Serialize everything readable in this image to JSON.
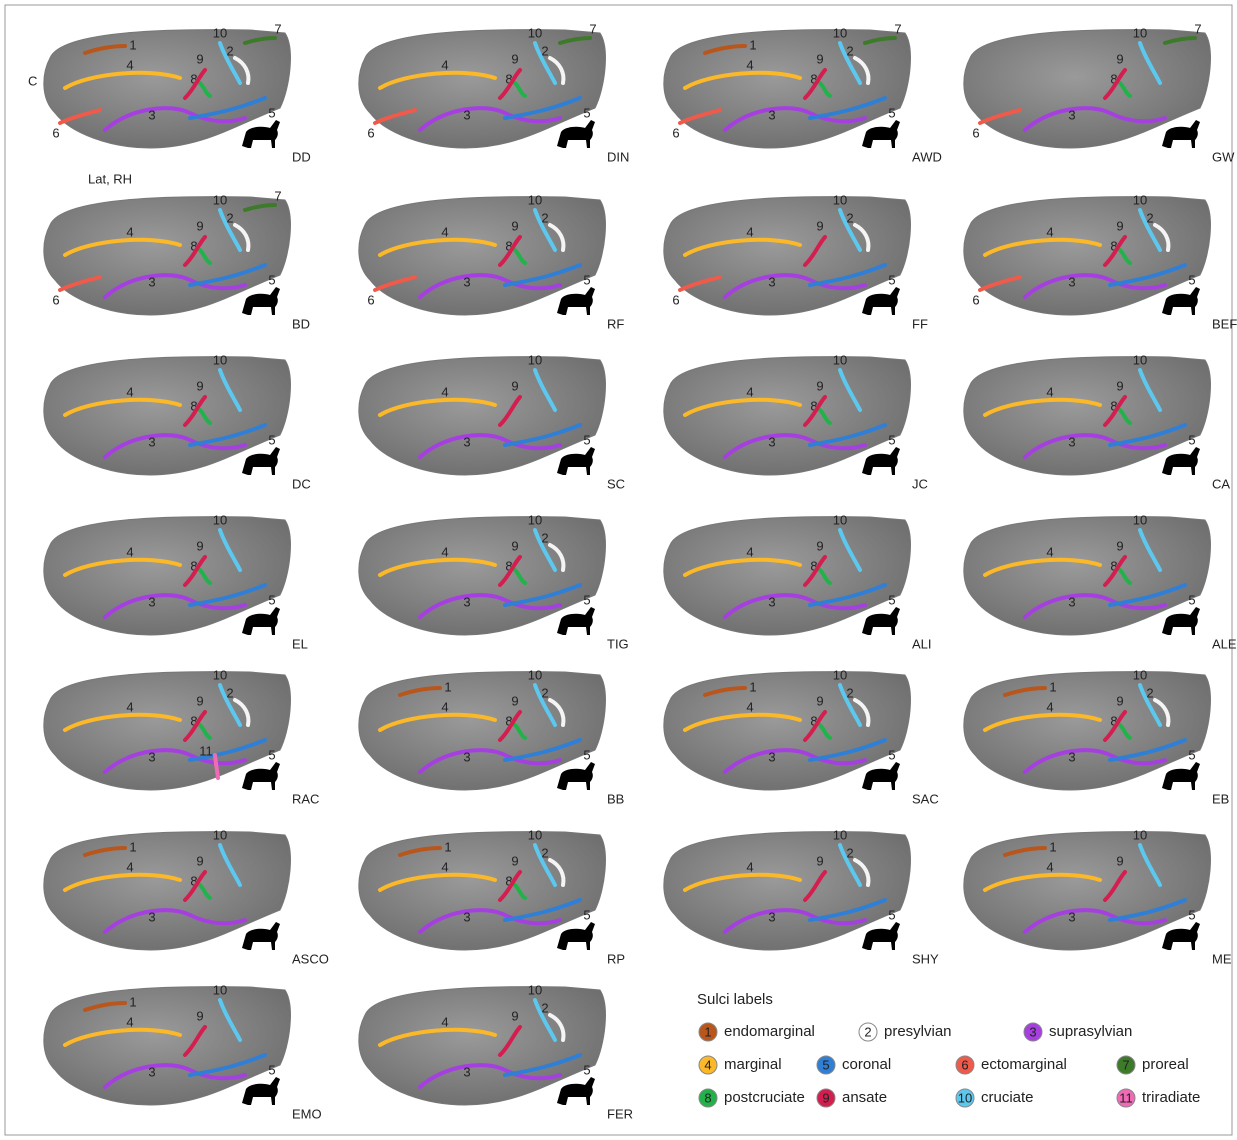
{
  "orientation_label": "C",
  "view_label": "Lat, RH",
  "panels": [
    {
      "abbr": "DD",
      "sulci": [
        1,
        2,
        3,
        4,
        5,
        6,
        7,
        8,
        9,
        10
      ]
    },
    {
      "abbr": "DIN",
      "sulci": [
        2,
        3,
        4,
        5,
        6,
        7,
        8,
        9,
        10
      ]
    },
    {
      "abbr": "AWD",
      "sulci": [
        1,
        2,
        3,
        4,
        5,
        6,
        7,
        8,
        9,
        10
      ]
    },
    {
      "abbr": "GW",
      "sulci": [
        3,
        6,
        7,
        8,
        9,
        10
      ]
    },
    {
      "abbr": "BD",
      "sulci": [
        2,
        3,
        4,
        5,
        6,
        7,
        8,
        9,
        10
      ]
    },
    {
      "abbr": "RF",
      "sulci": [
        2,
        3,
        4,
        5,
        6,
        8,
        9,
        10
      ]
    },
    {
      "abbr": "FF",
      "sulci": [
        2,
        3,
        4,
        5,
        6,
        9,
        10
      ]
    },
    {
      "abbr": "BEF",
      "sulci": [
        2,
        3,
        4,
        5,
        6,
        8,
        9,
        10
      ]
    },
    {
      "abbr": "DC",
      "sulci": [
        3,
        4,
        5,
        8,
        9,
        10
      ]
    },
    {
      "abbr": "SC",
      "sulci": [
        3,
        4,
        5,
        9,
        10
      ]
    },
    {
      "abbr": "JC",
      "sulci": [
        3,
        4,
        5,
        8,
        9,
        10
      ]
    },
    {
      "abbr": "CA",
      "sulci": [
        3,
        4,
        5,
        8,
        9,
        10
      ]
    },
    {
      "abbr": "EL",
      "sulci": [
        3,
        4,
        5,
        8,
        9,
        10
      ]
    },
    {
      "abbr": "TIG",
      "sulci": [
        2,
        3,
        4,
        5,
        8,
        9,
        10
      ]
    },
    {
      "abbr": "ALI",
      "sulci": [
        3,
        4,
        5,
        8,
        9,
        10
      ]
    },
    {
      "abbr": "ALE",
      "sulci": [
        3,
        4,
        5,
        8,
        9,
        10
      ]
    },
    {
      "abbr": "RAC",
      "sulci": [
        2,
        3,
        4,
        5,
        8,
        9,
        10,
        11
      ]
    },
    {
      "abbr": "BB",
      "sulci": [
        1,
        2,
        3,
        4,
        5,
        8,
        9,
        10
      ]
    },
    {
      "abbr": "SAC",
      "sulci": [
        1,
        2,
        3,
        4,
        5,
        8,
        9,
        10
      ]
    },
    {
      "abbr": "EB",
      "sulci": [
        1,
        2,
        3,
        4,
        5,
        8,
        9,
        10
      ]
    },
    {
      "abbr": "ASCO",
      "sulci": [
        1,
        3,
        4,
        8,
        9,
        10
      ]
    },
    {
      "abbr": "RP",
      "sulci": [
        1,
        2,
        3,
        4,
        5,
        8,
        9,
        10
      ]
    },
    {
      "abbr": "SHY",
      "sulci": [
        2,
        3,
        4,
        5,
        9,
        10
      ]
    },
    {
      "abbr": "ME",
      "sulci": [
        1,
        3,
        4,
        5,
        9,
        10
      ]
    },
    {
      "abbr": "EMO",
      "sulci": [
        1,
        3,
        4,
        5,
        9,
        10
      ]
    },
    {
      "abbr": "FER",
      "sulci": [
        2,
        3,
        4,
        5,
        9,
        10
      ]
    }
  ],
  "legend": {
    "title": "Sulci labels",
    "items": [
      {
        "number": 1,
        "name": "endomarginal",
        "color": "#b8561c"
      },
      {
        "number": 2,
        "name": "presylvian",
        "color": "#ffffff"
      },
      {
        "number": 3,
        "name": "suprasylvian",
        "color": "#a53fe0"
      },
      {
        "number": 4,
        "name": "marginal",
        "color": "#fbb829"
      },
      {
        "number": 5,
        "name": "coronal",
        "color": "#2f7fd6"
      },
      {
        "number": 6,
        "name": "ectomarginal",
        "color": "#f05a4a"
      },
      {
        "number": 7,
        "name": "proreal",
        "color": "#3d7a2a"
      },
      {
        "number": 8,
        "name": "postcruciate",
        "color": "#22b24a"
      },
      {
        "number": 9,
        "name": "ansate",
        "color": "#d41e4f"
      },
      {
        "number": 10,
        "name": "cruciate",
        "color": "#5cc8f0"
      },
      {
        "number": 11,
        "name": "triradiate",
        "color": "#f06bb5"
      }
    ]
  }
}
